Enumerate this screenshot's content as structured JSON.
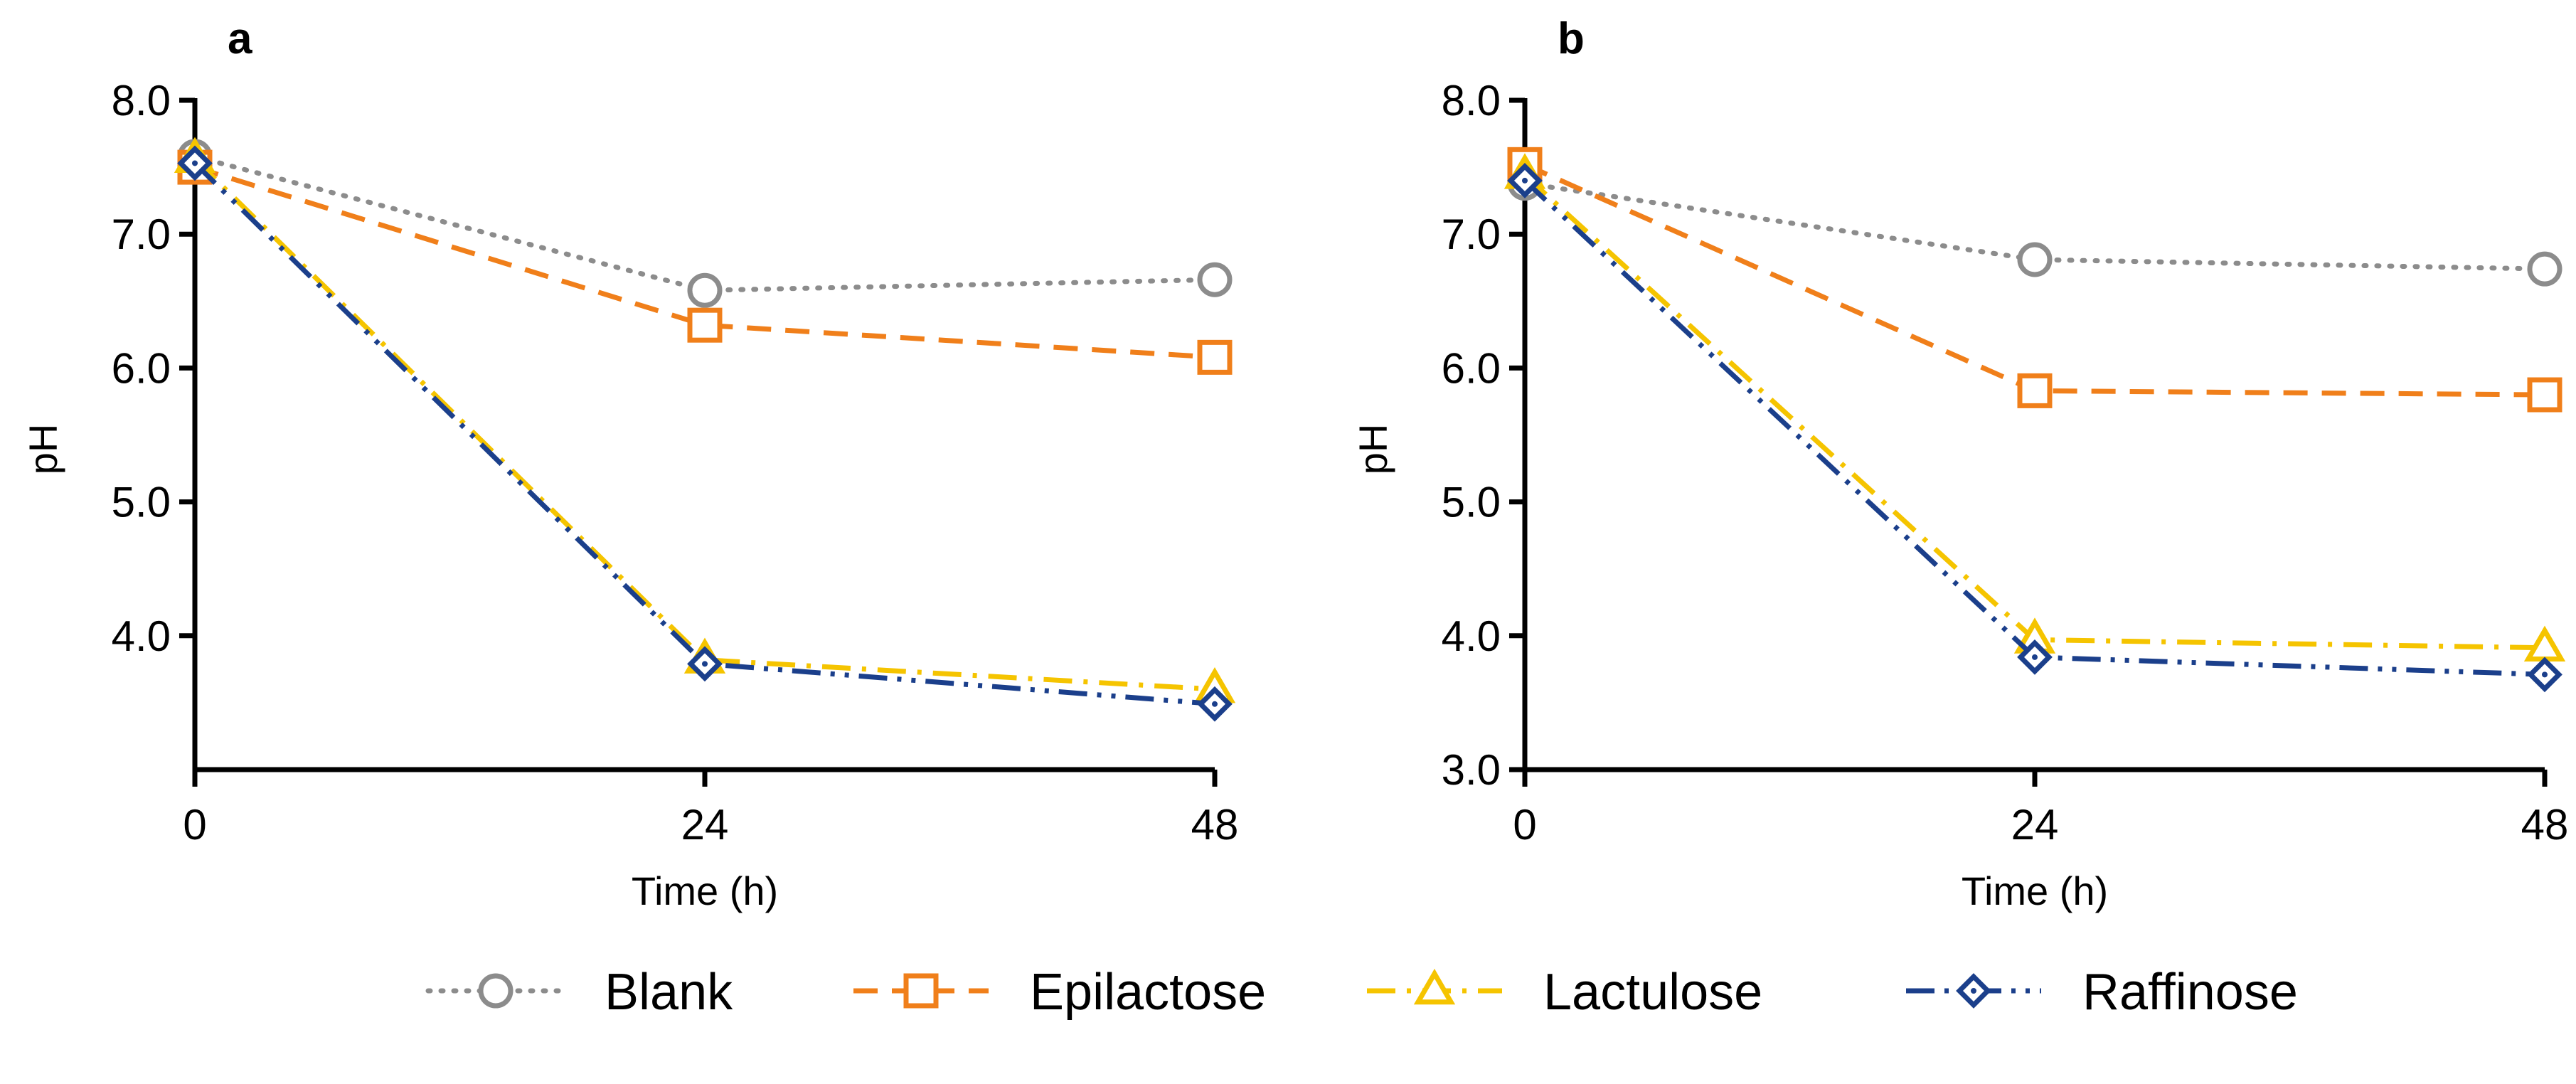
{
  "legend": [
    {
      "name": "Blank",
      "label": "Blank"
    },
    {
      "name": "Epilactose",
      "label": "Epilactose"
    },
    {
      "name": "Lactulose",
      "label": "Lactulose"
    },
    {
      "name": "Raffinose",
      "label": "Raffinose"
    }
  ],
  "series_styles": {
    "Blank": {
      "color": "#8c8c8c",
      "marker": "circle",
      "dash": "dotted"
    },
    "Epilactose": {
      "color": "#f07f1a",
      "marker": "square",
      "dash": "dashed"
    },
    "Lactulose": {
      "color": "#f5c400",
      "marker": "triangle",
      "dash": "dashdot"
    },
    "Raffinose": {
      "color": "#1b3f8b",
      "marker": "diamond",
      "dash": "dashdotdot"
    }
  },
  "chart_data": [
    {
      "type": "line",
      "panel": "a",
      "title": "",
      "xlabel": "Time (h)",
      "ylabel": "pH",
      "x": [
        0,
        24,
        48
      ],
      "xticks": [
        "0",
        "24",
        "48"
      ],
      "xlim": [
        0,
        48
      ],
      "ylim": [
        3.0,
        8.0
      ],
      "yticks": [
        4.0,
        5.0,
        6.0,
        7.0,
        8.0
      ],
      "yticklabels": [
        "4.0",
        "5.0",
        "6.0",
        "7.0",
        "8.0"
      ],
      "grid": false,
      "series": [
        {
          "name": "Blank",
          "values": [
            7.58,
            6.58,
            6.66
          ]
        },
        {
          "name": "Epilactose",
          "values": [
            7.5,
            6.32,
            6.08
          ]
        },
        {
          "name": "Lactulose",
          "values": [
            7.56,
            3.82,
            3.6
          ]
        },
        {
          "name": "Raffinose",
          "values": [
            7.53,
            3.79,
            3.49
          ]
        }
      ]
    },
    {
      "type": "line",
      "panel": "b",
      "title": "",
      "xlabel": "Time (h)",
      "ylabel": "pH",
      "x": [
        0,
        24,
        48
      ],
      "xticks": [
        "0",
        "24",
        "48"
      ],
      "xlim": [
        0,
        48
      ],
      "ylim": [
        3.0,
        8.0
      ],
      "yticks": [
        3.0,
        4.0,
        5.0,
        6.0,
        7.0,
        8.0
      ],
      "yticklabels": [
        "3.0",
        "4.0",
        "5.0",
        "6.0",
        "7.0",
        "8.0"
      ],
      "grid": false,
      "series": [
        {
          "name": "Blank",
          "values": [
            7.38,
            6.81,
            6.74
          ]
        },
        {
          "name": "Epilactose",
          "values": [
            7.52,
            5.83,
            5.8
          ]
        },
        {
          "name": "Lactulose",
          "values": [
            7.44,
            3.97,
            3.91
          ]
        },
        {
          "name": "Raffinose",
          "values": [
            7.4,
            3.84,
            3.71
          ]
        }
      ]
    }
  ]
}
